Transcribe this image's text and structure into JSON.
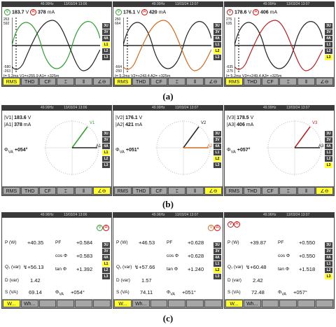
{
  "figure": {
    "a": "(a)",
    "b": "(b)",
    "c": "(c)"
  },
  "freq": "49.99Hz",
  "freq2": "49.96Hz",
  "date": "13/03/24 13:06",
  "date2": "13/03/24 13:07",
  "side_items": [
    "3U",
    "3V",
    "4A",
    "L1",
    "L2",
    "L3"
  ],
  "waveform": {
    "tabs": [
      "RMS",
      "THD",
      "CF",
      "",
      "",
      ""
    ],
    "panels": [
      {
        "ph": "V",
        "v": "183.7",
        "vu": "V",
        "ph2": "A",
        "a": "378",
        "au": "mA",
        "ytop": "263",
        "ytop2": "592",
        "ybot": "-580",
        "ybot2": "-263",
        "tl": "Ⅰ= 5.2ms",
        "cur": "V1=+255.9",
        "cur2": "A1= +325m",
        "color": "#2e9e2e"
      },
      {
        "ph": "V",
        "v": "176.1",
        "vu": "V",
        "ph2": "A",
        "a": "420",
        "au": "mA",
        "ytop": "250",
        "ytop2": "664",
        "ybot": "-664",
        "ybot2": "-250",
        "tl": "Ⅰ= 5.2ms",
        "cur": "V2=+243.4",
        "cur2": "A2= +325m",
        "color": "#d2691e"
      },
      {
        "ph": "V",
        "v": "178.6",
        "vu": "V",
        "ph2": "A",
        "a": "406",
        "au": "mA",
        "ytop": "275",
        "ytop2": "635",
        "ybot": "-635",
        "ybot2": "-275",
        "tl": "Ⅰ= 5.2ms",
        "cur": "V3=+249.4",
        "cur2": "A3= +325m",
        "color": "#b22222"
      }
    ]
  },
  "vector": {
    "tabs": [
      "RMS",
      "THD",
      "CF",
      "",
      ""
    ],
    "panels": [
      {
        "vl": "|V1|",
        "v": "183.6",
        "vu": "V",
        "al": "|A1|",
        "a": "378",
        "au": "mA",
        "phi": "Φ",
        "phisub": "VA",
        "pv": "+054°",
        "vec": "V1",
        "avec": "A1",
        "color": "#2e9e2e"
      },
      {
        "vl": "|V2|",
        "v": "176.1",
        "vu": "V",
        "al": "|A2|",
        "a": "421",
        "au": "mA",
        "phi": "Φ",
        "phisub": "VA",
        "pv": "+051°",
        "vec": "V2",
        "avec": "A2",
        "color": "#d2691e"
      },
      {
        "vl": "|V3|",
        "v": "178.5",
        "vu": "V",
        "al": "|A3|",
        "a": "406",
        "au": "mA",
        "phi": "Φ",
        "phisub": "VA",
        "pv": "+057°",
        "vec": "V3",
        "avec": "A3",
        "color": "#b22222"
      }
    ]
  },
  "power": {
    "tabs": [
      "W...",
      "Wh..."
    ],
    "labels": {
      "p": "P (W)",
      "q": "Q₁ (var)",
      "d": "D (var)",
      "s": "S (VA)",
      "pf": "PF",
      "cos": "cos Φ",
      "tan": "tan Φ",
      "phi": "Φ",
      "phisub": "VA"
    },
    "panels": [
      {
        "p": "+40.35",
        "q": "+56.13",
        "d": "1.42",
        "s": "69.14",
        "pf": "+0.584",
        "cos": "+0.583",
        "tan": "+1.392",
        "phi": "+054°",
        "q_prefix": "↯"
      },
      {
        "p": "+46.53",
        "q": "+57.66",
        "d": "1.57",
        "s": "74.11",
        "pf": "+0.628",
        "cos": "+0.628",
        "tan": "+1.240",
        "phi": "+051°",
        "q_prefix": "↯"
      },
      {
        "p": "+39.87",
        "q": "+60.48",
        "d": "2.42",
        "s": "72.48",
        "pf": "+0.550",
        "cos": "+0.550",
        "tan": "+1.518",
        "phi": "+057°",
        "q_prefix": "↯"
      }
    ]
  }
}
